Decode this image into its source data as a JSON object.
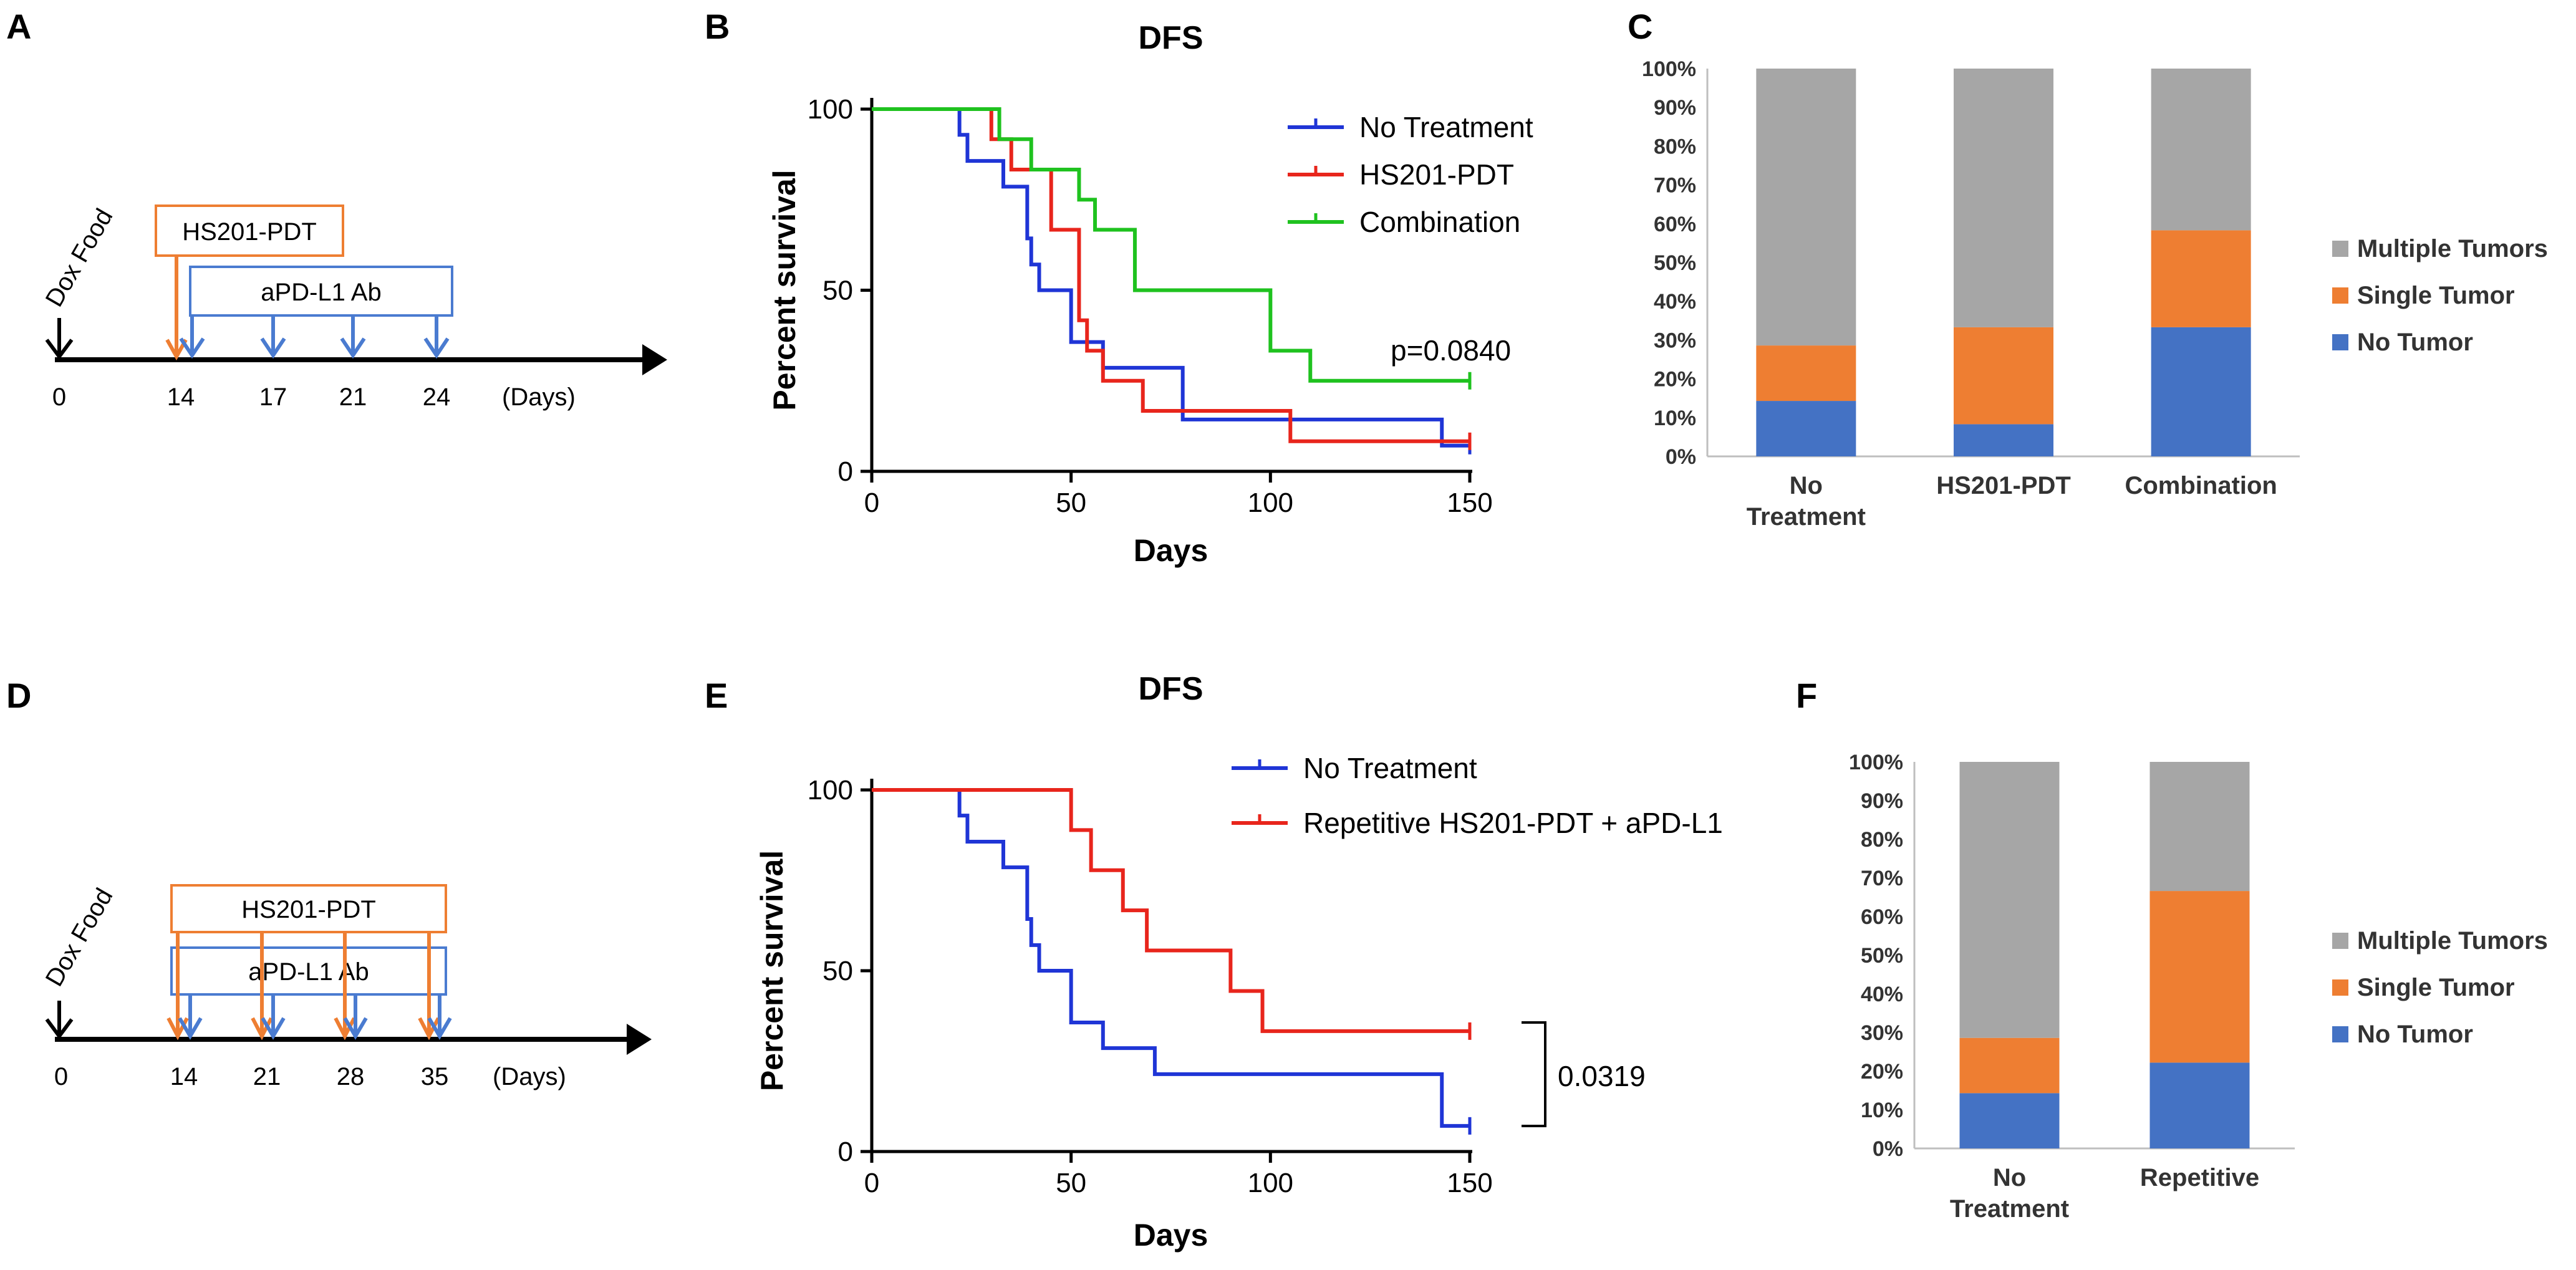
{
  "panel_labels": {
    "A": "A",
    "B": "B",
    "C": "C",
    "D": "D",
    "E": "E",
    "F": "F"
  },
  "colors": {
    "blue": "#1f35d6",
    "red": "#e8251c",
    "green": "#1fc21f",
    "bar_gray": "#a6a6a6",
    "bar_orange": "#ee7e32",
    "bar_blue": "#4472c4",
    "timeline_orange": "#ee7e32",
    "timeline_blue": "#4a7bd0"
  },
  "timeline_top": {
    "food_label": "Dox Food",
    "pdt_label": "HS201-PDT",
    "ab_label": "aPD-L1 Ab",
    "ticks": [
      "0",
      "14",
      "17",
      "21",
      "24"
    ],
    "unit": "(Days)"
  },
  "timeline_bottom": {
    "food_label": "Dox Food",
    "pdt_label": "HS201-PDT",
    "ab_label": "aPD-L1 Ab",
    "ticks": [
      "0",
      "14",
      "21",
      "28",
      "35"
    ],
    "unit": "(Days)"
  },
  "chart_data": [
    {
      "panel": "B",
      "type": "line",
      "title": "DFS",
      "xlabel": "Days",
      "ylabel": "Percent survival",
      "xlim": [
        0,
        150
      ],
      "ylim": [
        0,
        100
      ],
      "xticks": [
        "0",
        "50",
        "100",
        "150"
      ],
      "yticks": [
        "0",
        "50",
        "100"
      ],
      "annotation": "p=0.0840",
      "series": [
        {
          "name": "No Treatment",
          "color": "#1f35d6",
          "x": [
            0,
            22,
            24,
            33,
            39,
            40,
            42,
            50,
            58,
            78,
            143,
            150
          ],
          "y": [
            100,
            92.9,
            85.7,
            78.6,
            64.3,
            57.1,
            50,
            35.7,
            28.6,
            14.3,
            7.1,
            7.1
          ]
        },
        {
          "name": "HS201-PDT",
          "color": "#e8251c",
          "x": [
            0,
            30,
            35,
            45,
            52,
            54,
            58,
            68,
            77,
            105,
            150
          ],
          "y": [
            100,
            91.7,
            83.3,
            66.7,
            41.7,
            33.3,
            25,
            16.7,
            16.7,
            8.3,
            8.3
          ]
        },
        {
          "name": "Combination",
          "color": "#1fc21f",
          "x": [
            0,
            28,
            32,
            40,
            52,
            56,
            66,
            100,
            110,
            150
          ],
          "y": [
            100,
            100,
            91.7,
            83.3,
            75,
            66.7,
            50,
            33.3,
            25,
            25
          ]
        }
      ]
    },
    {
      "panel": "C",
      "type": "bar",
      "stacked": true,
      "categories": [
        "No Treatment",
        "HS201-PDT",
        "Combination"
      ],
      "category_lines": [
        [
          "No",
          "Treatment"
        ],
        [
          "HS201-PDT"
        ],
        [
          "Combination"
        ]
      ],
      "yticks": [
        "0%",
        "10%",
        "20%",
        "30%",
        "40%",
        "50%",
        "60%",
        "70%",
        "80%",
        "90%",
        "100%"
      ],
      "ylim": [
        0,
        100
      ],
      "series": [
        {
          "name": "No Tumor",
          "color": "#4472c4",
          "values": [
            14.3,
            8.3,
            33.3
          ]
        },
        {
          "name": "Single Tumor",
          "color": "#ee7e32",
          "values": [
            14.3,
            25.0,
            25.0
          ]
        },
        {
          "name": "Multiple Tumors",
          "color": "#a6a6a6",
          "values": [
            71.4,
            66.7,
            41.7
          ]
        }
      ],
      "legend_order": [
        "Multiple Tumors",
        "Single Tumor",
        "No Tumor"
      ]
    },
    {
      "panel": "E",
      "type": "line",
      "title": "DFS",
      "xlabel": "Days",
      "ylabel": "Percent survival",
      "xlim": [
        0,
        150
      ],
      "ylim": [
        0,
        100
      ],
      "xticks": [
        "0",
        "50",
        "100",
        "150"
      ],
      "yticks": [
        "0",
        "50",
        "100"
      ],
      "annotation": "0.0319",
      "series": [
        {
          "name": "No Treatment",
          "color": "#1f35d6",
          "x": [
            0,
            22,
            24,
            33,
            39,
            40,
            42,
            50,
            58,
            71,
            143,
            150
          ],
          "y": [
            100,
            92.9,
            85.7,
            78.6,
            64.3,
            57.1,
            50,
            35.7,
            28.6,
            21.4,
            7.1,
            7.1
          ]
        },
        {
          "name": "Repetitive HS201-PDT + aPD-L1",
          "color": "#e8251c",
          "x": [
            0,
            50,
            55,
            63,
            69,
            90,
            98,
            150
          ],
          "y": [
            100,
            88.9,
            77.8,
            66.7,
            55.6,
            44.4,
            33.3,
            33.3
          ]
        }
      ]
    },
    {
      "panel": "F",
      "type": "bar",
      "stacked": true,
      "categories": [
        "No Treatment",
        "Repetitive"
      ],
      "category_lines": [
        [
          "No",
          "Treatment"
        ],
        [
          "Repetitive"
        ]
      ],
      "yticks": [
        "0%",
        "10%",
        "20%",
        "30%",
        "40%",
        "50%",
        "60%",
        "70%",
        "80%",
        "90%",
        "100%"
      ],
      "ylim": [
        0,
        100
      ],
      "series": [
        {
          "name": "No Tumor",
          "color": "#4472c4",
          "values": [
            14.3,
            22.2
          ]
        },
        {
          "name": "Single Tumor",
          "color": "#ee7e32",
          "values": [
            14.3,
            44.4
          ]
        },
        {
          "name": "Multiple Tumors",
          "color": "#a6a6a6",
          "values": [
            71.4,
            33.4
          ]
        }
      ],
      "legend_order": [
        "Multiple Tumors",
        "Single Tumor",
        "No Tumor"
      ]
    }
  ]
}
